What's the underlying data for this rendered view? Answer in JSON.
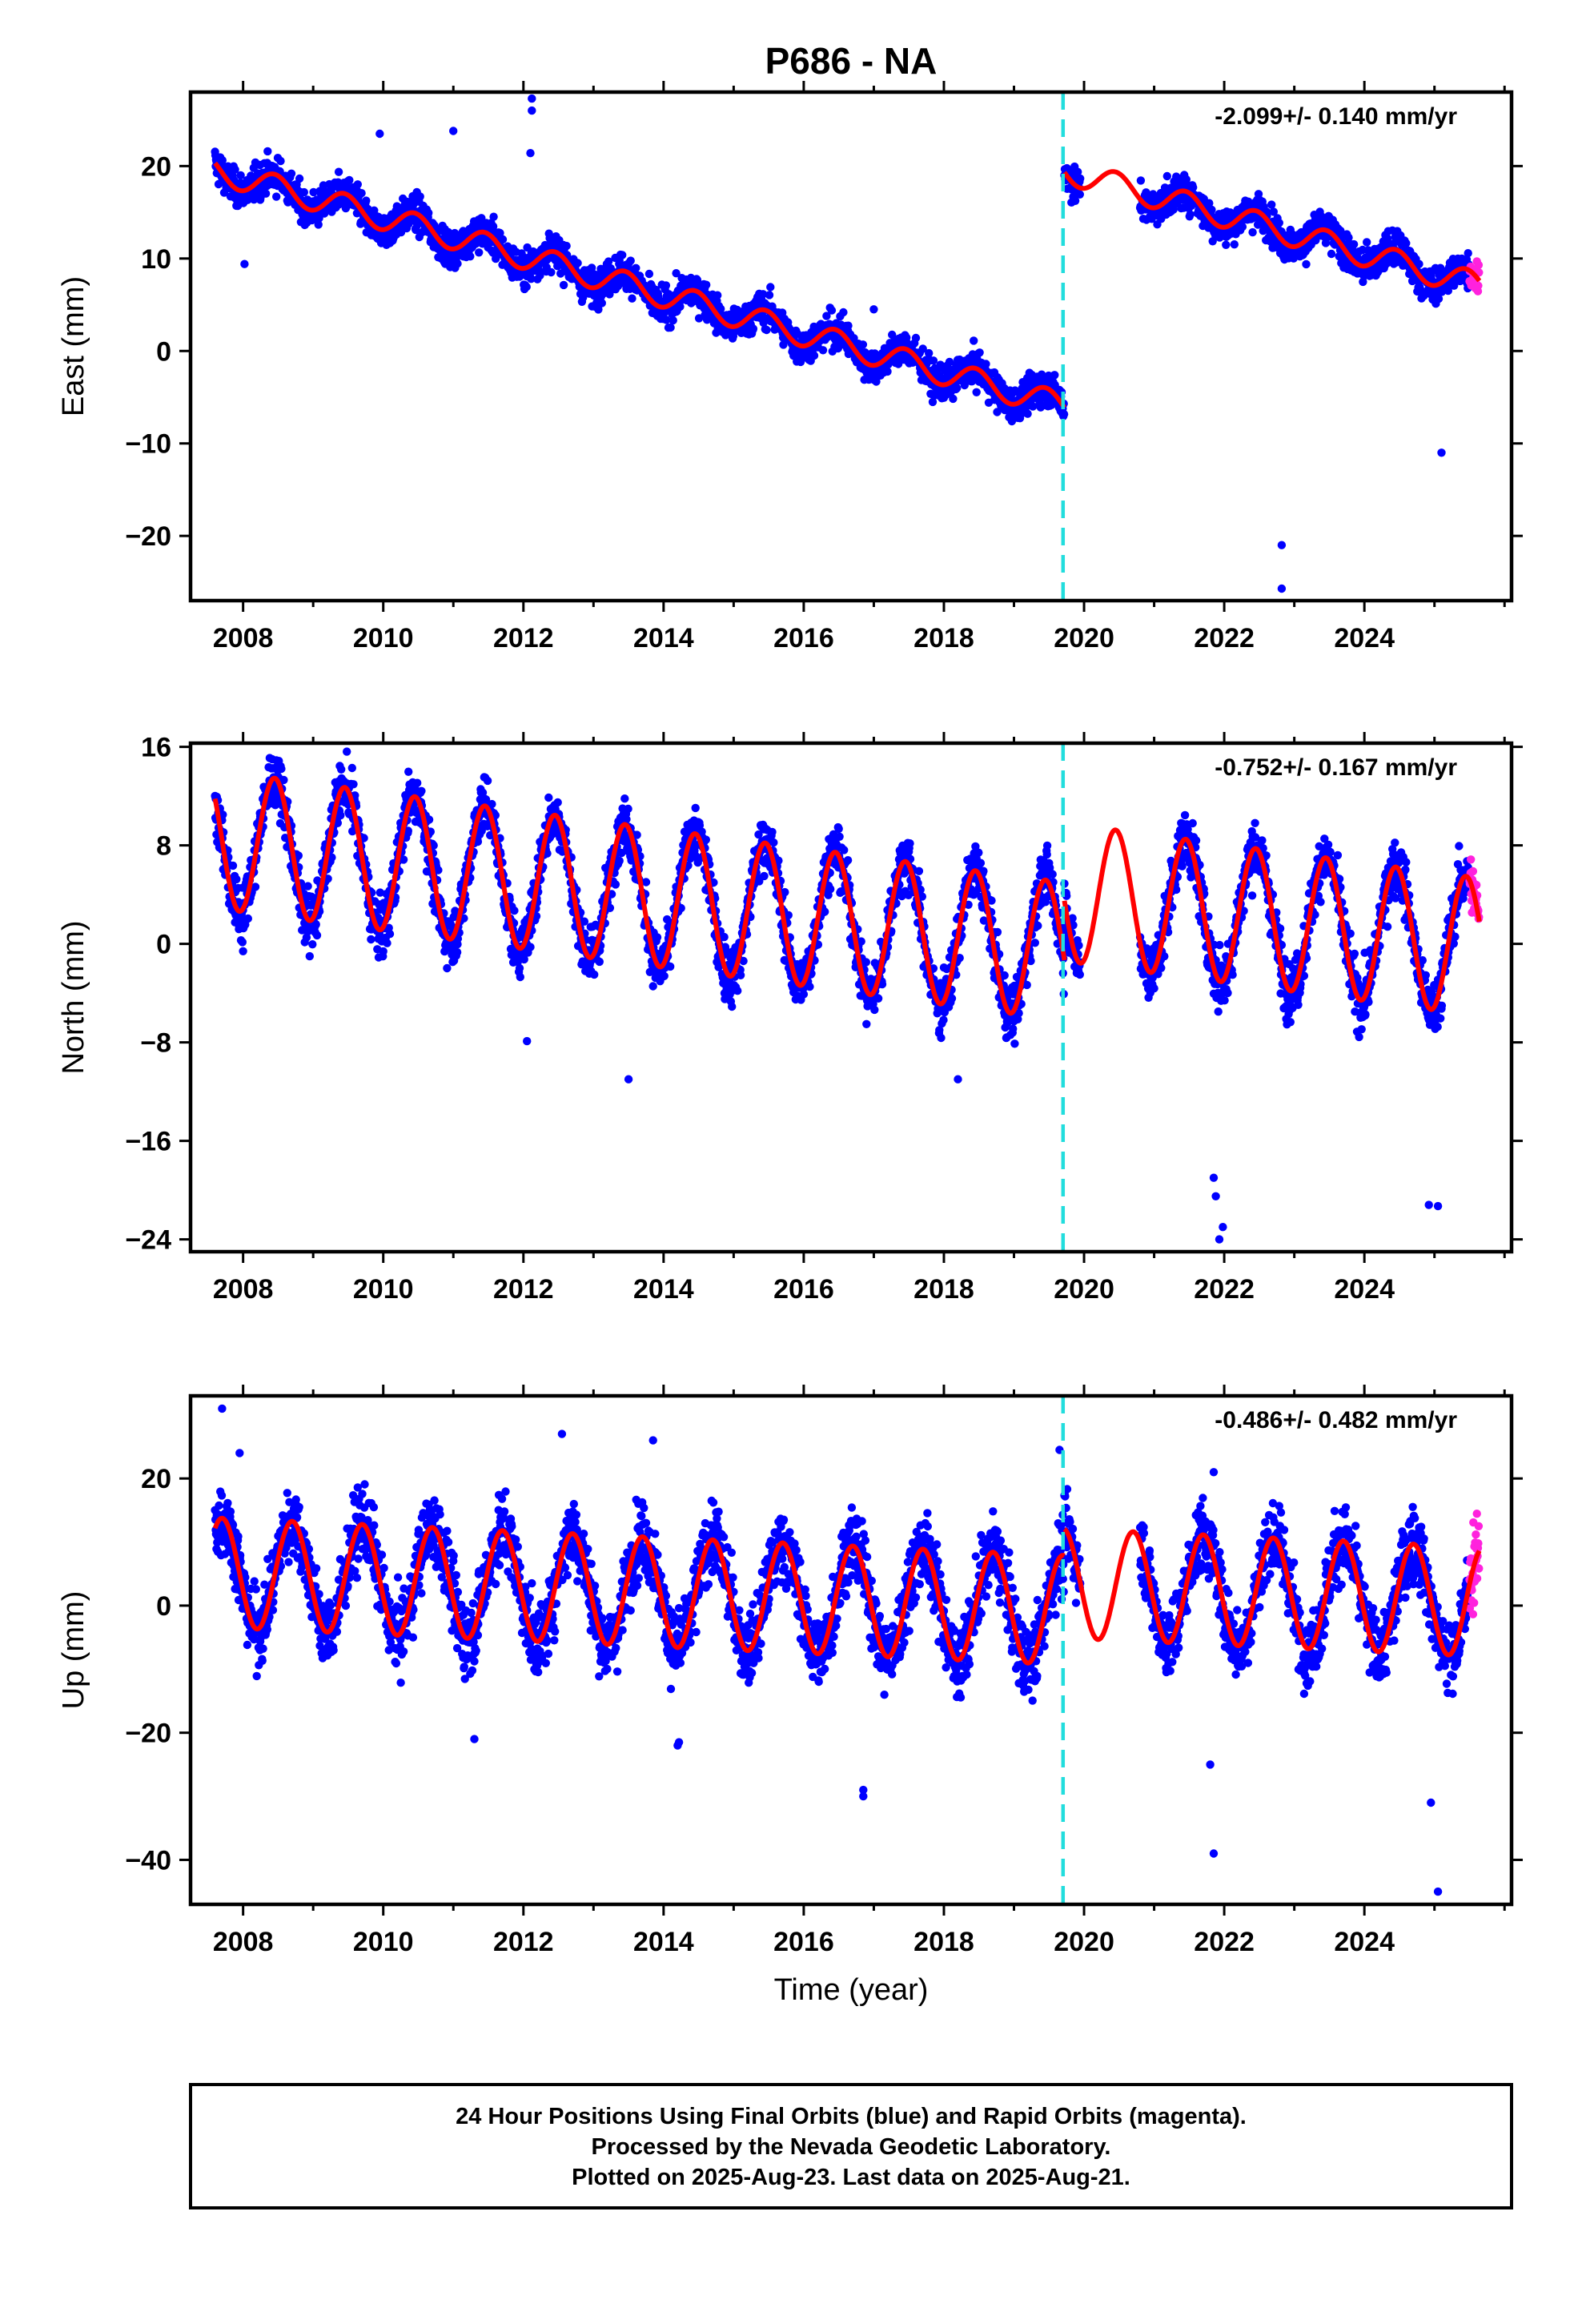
{
  "title": "P686 - NA",
  "xlabel": "Time (year)",
  "footer": {
    "line1": "24 Hour Positions Using Final Orbits (blue) and Rapid Orbits (magenta).",
    "line2": "Processed by the Nevada Geodetic Laboratory.",
    "line3": "Plotted on 2025-Aug-23. Last data on 2025-Aug-21."
  },
  "colors": {
    "final_orbits": "#0000ff",
    "rapid_orbits": "#ff22dd",
    "model": "#ff0000",
    "event_line": "#22dddd",
    "frame": "#000000"
  },
  "chart_data": [
    {
      "type": "scatter",
      "component": "east",
      "ylabel": "East (mm)",
      "rate": "-2.099+/- 0.140 mm/yr",
      "xlim": [
        2007.25,
        2026.1
      ],
      "ylim": [
        -27,
        28
      ],
      "x_ticks": [
        2008,
        2010,
        2012,
        2014,
        2016,
        2018,
        2020,
        2022,
        2024
      ],
      "y_ticks": [
        20,
        10,
        0,
        -10,
        -20
      ],
      "event_line_x": 2019.7,
      "data_start": 2007.6,
      "data_end": 2025.64,
      "rapid_start": 2025.5,
      "gaps": [
        [
          2019.95,
          2020.8
        ]
      ],
      "model": {
        "series": [
          {
            "x0": 2007.6,
            "x1": 2019.72,
            "offset": 19.5,
            "rate": -2.099,
            "amp": 1.4,
            "phase_year": 2008.45,
            "rate_change": 0,
            "change_after": 2040
          },
          {
            "x0": 2019.72,
            "x1": 2025.64,
            "offset": 19.5,
            "rate": -2.099,
            "amp": 1.4,
            "phase_year": 2008.45,
            "rate_change": 0,
            "change_after": 2040
          }
        ]
      },
      "scatter_sigma": 1.3,
      "outliers": [
        [
          2012.12,
          27.3
        ],
        [
          2012.12,
          26.0
        ],
        [
          2012.1,
          21.4
        ],
        [
          2009.95,
          23.5
        ],
        [
          2011.0,
          23.8
        ],
        [
          2022.82,
          -25.7
        ],
        [
          2022.82,
          -21.0
        ],
        [
          2025.1,
          -11.0
        ],
        [
          2017.0,
          4.5
        ],
        [
          2008.02,
          9.4
        ]
      ]
    },
    {
      "type": "scatter",
      "component": "north",
      "ylabel": "North (mm)",
      "rate": "-0.752+/- 0.167 mm/yr",
      "xlim": [
        2007.25,
        2026.1
      ],
      "ylim": [
        -25,
        16.3
      ],
      "x_ticks": [
        2008,
        2010,
        2012,
        2014,
        2016,
        2018,
        2020,
        2022,
        2024
      ],
      "y_ticks": [
        16,
        8,
        0,
        -8,
        -16,
        -24
      ],
      "event_line_x": 2019.7,
      "data_start": 2007.6,
      "data_end": 2025.64,
      "rapid_start": 2025.5,
      "gaps": [
        [
          2019.95,
          2020.8
        ]
      ],
      "model": {
        "series": [
          {
            "x0": 2007.6,
            "x1": 2019.72,
            "offset": 8.5,
            "rate": -0.752,
            "amp": 5.6,
            "phase_year": 2008.45,
            "rate_change": 0,
            "change_after": 2040
          },
          {
            "x0": 2019.72,
            "x1": 2025.64,
            "offset": 4.2,
            "rate": -0.752,
            "amp": 5.6,
            "phase_year": 2008.45,
            "rate_change": 0,
            "change_after": 2040
          }
        ]
      },
      "scatter_sigma": 1.6,
      "outliers": [
        [
          2012.05,
          -7.9
        ],
        [
          2021.93,
          -24.0
        ],
        [
          2021.98,
          -23.0
        ],
        [
          2021.88,
          -20.5
        ],
        [
          2021.85,
          -19.0
        ],
        [
          2025.05,
          -21.3
        ],
        [
          2024.92,
          -21.2
        ],
        [
          2018.2,
          -11.0
        ],
        [
          2008.0,
          -0.6
        ],
        [
          2013.5,
          -11.0
        ]
      ]
    },
    {
      "type": "scatter",
      "component": "up",
      "ylabel": "Up (mm)",
      "rate": "-0.486+/- 0.482 mm/yr",
      "xlim": [
        2007.25,
        2026.1
      ],
      "ylim": [
        -47,
        33
      ],
      "x_ticks": [
        2008,
        2010,
        2012,
        2014,
        2016,
        2018,
        2020,
        2022,
        2024
      ],
      "y_ticks": [
        20,
        0,
        -20,
        -40
      ],
      "event_line_x": 2019.7,
      "data_start": 2007.6,
      "data_end": 2025.64,
      "rapid_start": 2025.5,
      "gaps": [
        [
          2019.95,
          2020.8
        ]
      ],
      "model": {
        "series": [
          {
            "x0": 2007.6,
            "x1": 2019.72,
            "offset": 5.2,
            "rate": -0.486,
            "amp": 8.6,
            "phase_year": 2008.7,
            "rate_change": 0,
            "change_after": 2040
          },
          {
            "x0": 2019.72,
            "x1": 2025.64,
            "offset": 3.5,
            "rate": -0.486,
            "amp": 8.6,
            "phase_year": 2008.7,
            "rate_change": 0,
            "change_after": 2040
          }
        ]
      },
      "scatter_sigma": 4.0,
      "outliers": [
        [
          2021.85,
          -39.0
        ],
        [
          2025.05,
          -45.0
        ],
        [
          2024.95,
          -31.0
        ],
        [
          2016.85,
          -29.0
        ],
        [
          2016.85,
          -30.0
        ],
        [
          2021.85,
          21.0
        ],
        [
          2014.2,
          -22.0
        ],
        [
          2014.22,
          -21.5
        ],
        [
          2011.3,
          -21.0
        ],
        [
          2007.7,
          31.0
        ],
        [
          2012.55,
          27.0
        ],
        [
          2013.85,
          26.0
        ],
        [
          2007.95,
          24.0
        ],
        [
          2019.65,
          24.5
        ],
        [
          2021.8,
          -25.0
        ]
      ]
    }
  ]
}
